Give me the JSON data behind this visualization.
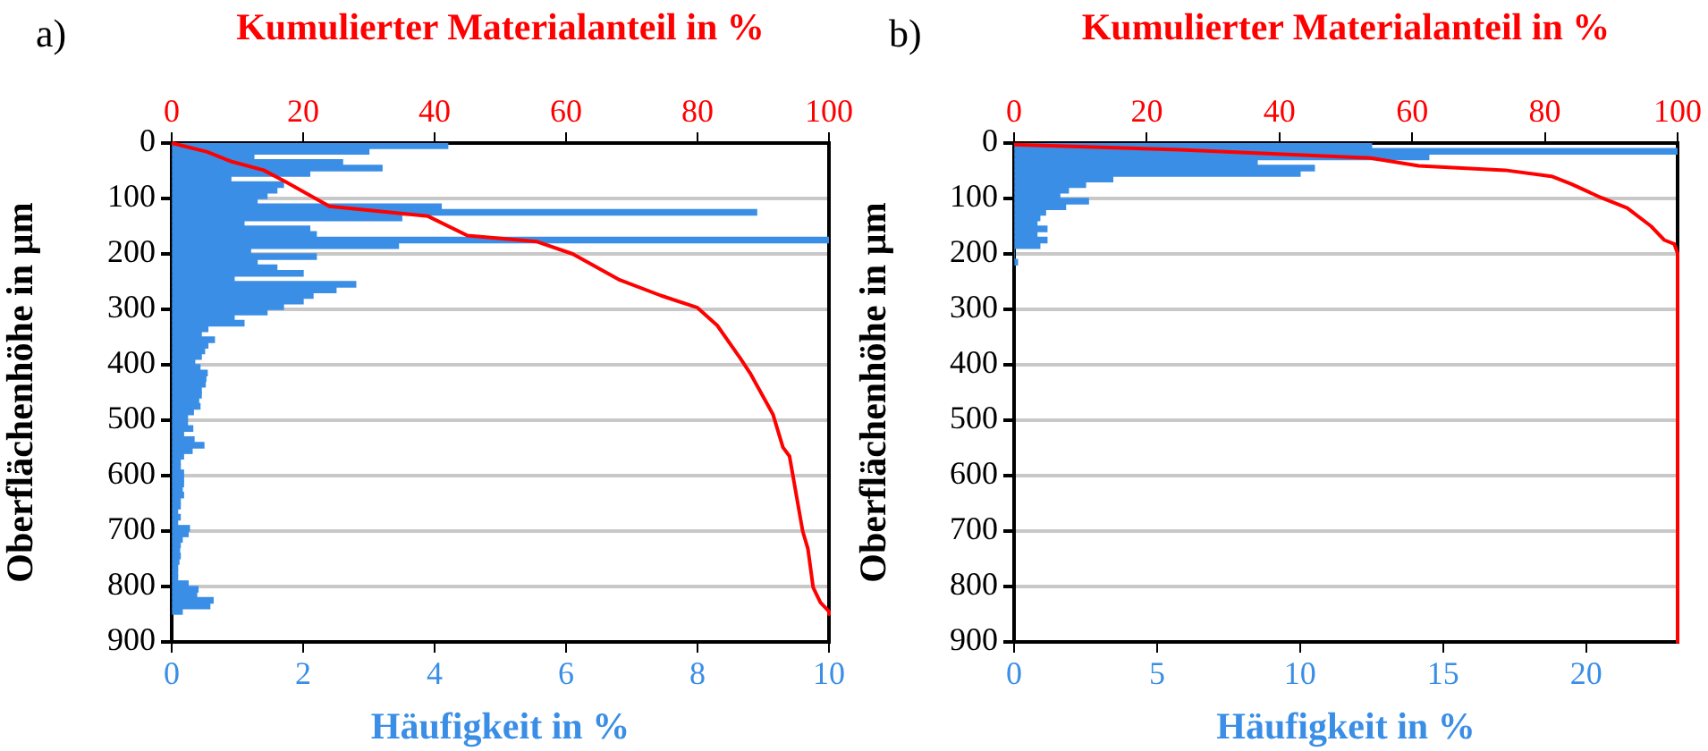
{
  "chart_data": [
    {
      "type": "histogram",
      "orientation": "horizontal",
      "title": "a)",
      "xlabel": "Häufigkeit in %",
      "x2label": "Kumulierter Materialanteil in %",
      "ylabel": "Oberflächenhöhe in µm",
      "bins": [
        0,
        10,
        20,
        30,
        40,
        50,
        60,
        70,
        80,
        90,
        100,
        110,
        120,
        130,
        140,
        150,
        160,
        170,
        180,
        190,
        200,
        210,
        220,
        230,
        240,
        250,
        260,
        270,
        280,
        290,
        300,
        310,
        320,
        330,
        340,
        350,
        360,
        370,
        380,
        390,
        400,
        410,
        420,
        430,
        440,
        450,
        460,
        470,
        480,
        490,
        500,
        510,
        520,
        530,
        540,
        550,
        560,
        570,
        580,
        590,
        600,
        610,
        620,
        630,
        640,
        650,
        660,
        670,
        680,
        690,
        700,
        710,
        720,
        730,
        740,
        750,
        760,
        770,
        780,
        790,
        800,
        810,
        820,
        830,
        840,
        850
      ],
      "xlim": [
        0,
        10
      ],
      "xticks": [
        0,
        2,
        4,
        6,
        8,
        10
      ],
      "x2lim": [
        0,
        100
      ],
      "x2ticks": [
        0,
        20,
        40,
        60,
        80,
        100
      ],
      "ylim": [
        900,
        0
      ],
      "yticks": [
        0,
        100,
        200,
        300,
        400,
        500,
        600,
        700,
        800,
        900
      ],
      "grid": "y",
      "legend": false,
      "series": [
        {
          "color": "#3a8ee6",
          "values": [
            4.2,
            3.0,
            1.25,
            2.6,
            3.2,
            2.1,
            0.9,
            1.7,
            1.6,
            1.45,
            1.3,
            4.1,
            8.9,
            3.5,
            1.1,
            2.1,
            2.2,
            10.0,
            3.45,
            1.2,
            2.2,
            1.3,
            1.6,
            2.0,
            0.95,
            2.8,
            2.5,
            2.15,
            2.0,
            1.7,
            1.45,
            0.95,
            1.1,
            0.55,
            0.45,
            0.65,
            0.55,
            0.5,
            0.45,
            0.35,
            0.43,
            0.54,
            0.52,
            0.51,
            0.45,
            0.45,
            0.41,
            0.43,
            0.33,
            0.24,
            0.24,
            0.32,
            0.18,
            0.34,
            0.49,
            0.31,
            0.18,
            0.13,
            0.13,
            0.18,
            0.18,
            0.18,
            0.16,
            0.18,
            0.13,
            0.13,
            0.09,
            0.13,
            0.09,
            0.27,
            0.25,
            0.16,
            0.13,
            0.12,
            0.13,
            0.11,
            0.09,
            0.09,
            0.09,
            0.25,
            0.4,
            0.38,
            0.63,
            0.58,
            0.16
          ]
        },
        {
          "type": "line",
          "axis": "x2",
          "color": "#ff0000",
          "x": [
            0,
            16,
            33,
            49,
            71,
            114,
            132,
            167,
            178,
            200,
            246,
            275,
            297,
            329,
            388,
            415,
            490,
            549,
            565,
            700,
            732,
            802,
            829,
            845,
            850
          ],
          "values": [
            0,
            5.4,
            9,
            14,
            17.5,
            24,
            39,
            45,
            55.6,
            61,
            68,
            74.4,
            80,
            83,
            86.5,
            88,
            91.5,
            93,
            94,
            96,
            96.8,
            97.6,
            98.7,
            100,
            100
          ]
        }
      ]
    },
    {
      "type": "histogram",
      "orientation": "horizontal",
      "title": "b)",
      "xlabel": "Häufigkeit in %",
      "x2label": "Kumulierter Materialanteil in %",
      "ylabel": "Oberflächenhöhe in µm",
      "bins": [
        0,
        10,
        20,
        30,
        40,
        50,
        60,
        70,
        80,
        90,
        100,
        110,
        120,
        130,
        140,
        150,
        160,
        170,
        180,
        190,
        200,
        210,
        220
      ],
      "xlim": [
        0,
        23.2
      ],
      "xticks": [
        0,
        5,
        10,
        15,
        20
      ],
      "x2lim": [
        0,
        100
      ],
      "x2ticks": [
        0,
        20,
        40,
        60,
        80,
        100
      ],
      "ylim": [
        900,
        0
      ],
      "yticks": [
        0,
        100,
        200,
        300,
        400,
        500,
        600,
        700,
        800,
        900
      ],
      "grid": "y",
      "legend": false,
      "series": [
        {
          "color": "#3a8ee6",
          "values": [
            12.5,
            23.2,
            14.5,
            8.5,
            10.5,
            10.0,
            3.45,
            2.5,
            1.9,
            1.6,
            2.6,
            1.8,
            1.1,
            0.9,
            0.8,
            1.15,
            0.8,
            1.15,
            0.9,
            0,
            0,
            0.12
          ]
        },
        {
          "type": "line",
          "axis": "x2",
          "color": "#ff0000",
          "x": [
            3,
            12,
            27,
            41,
            49,
            60,
            74,
            96,
            117,
            150,
            175,
            182,
            199,
            900
          ],
          "values": [
            0,
            25,
            53.7,
            61,
            74,
            81,
            84,
            88,
            92.4,
            96,
            98,
            99.5,
            100,
            100
          ]
        }
      ]
    }
  ]
}
